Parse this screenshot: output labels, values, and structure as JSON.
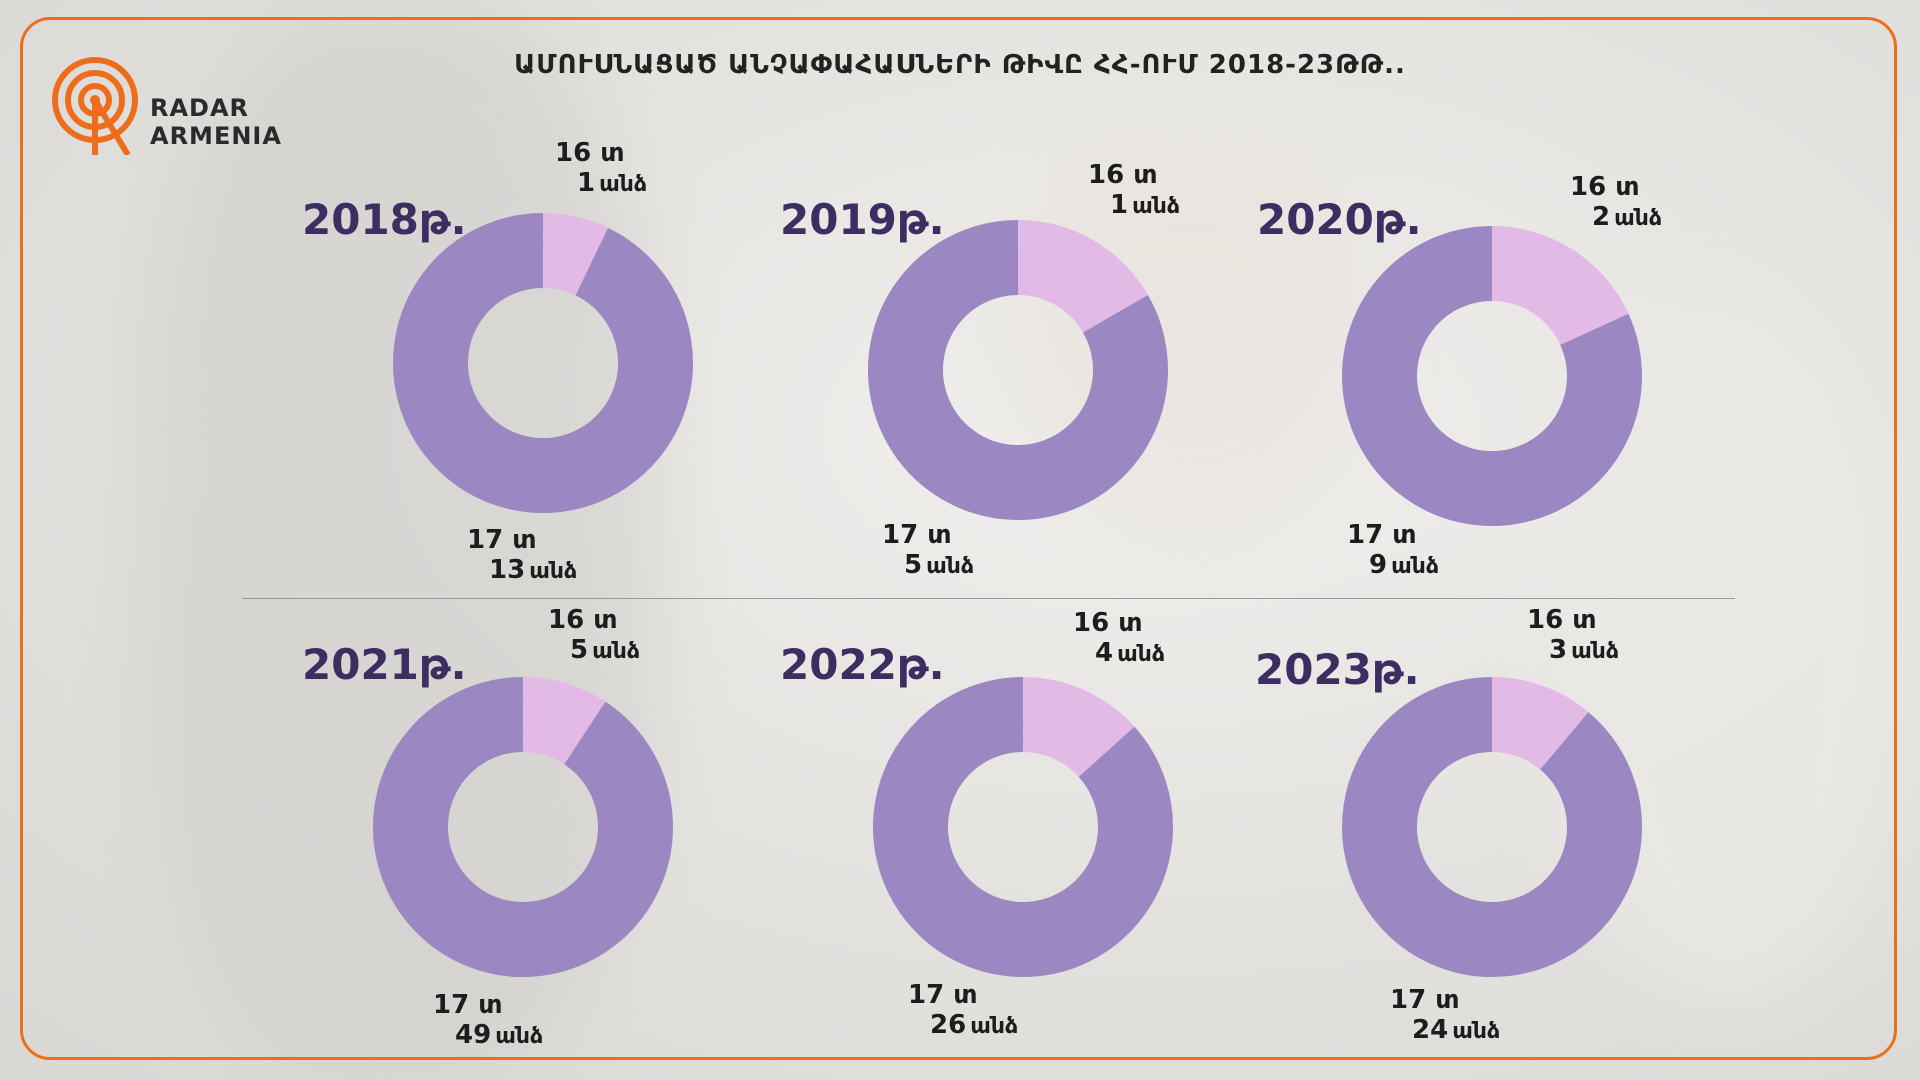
{
  "title": "ԱՄՈՒՍՆԱՑԱԾ ԱՆՉԱՓԱՀԱՍՆԵՐԻ ԹԻՎԸ ՀՀ-ՈՒՄ 2018-23ԹԹ..",
  "logo": {
    "line1": "RADAR",
    "line2": "ARMENIA"
  },
  "colors": {
    "age16": "#e3b9e6",
    "age17": "#9b88c3",
    "frame": "#ee6d1c",
    "year": "#3c2e61"
  },
  "chart_data": [
    {
      "type": "pie",
      "title": "2018թ.",
      "categories": [
        "16 տ",
        "17 տ"
      ],
      "values": [
        1,
        13
      ],
      "value_labels": [
        "1",
        "13"
      ],
      "unit": "անձ"
    },
    {
      "type": "pie",
      "title": "2019թ.",
      "categories": [
        "16 տ",
        "17 տ"
      ],
      "values": [
        1,
        5
      ],
      "value_labels": [
        "1",
        "5"
      ],
      "unit": "անձ"
    },
    {
      "type": "pie",
      "title": "2020թ.",
      "categories": [
        "16 տ",
        "17 տ"
      ],
      "values": [
        2,
        9
      ],
      "value_labels": [
        "2",
        "9"
      ],
      "unit": "անձ"
    },
    {
      "type": "pie",
      "title": "2021թ.",
      "categories": [
        "16 տ",
        "17 տ"
      ],
      "values": [
        5,
        49
      ],
      "value_labels": [
        "5",
        "49"
      ],
      "unit": "անձ"
    },
    {
      "type": "pie",
      "title": "2022թ.",
      "categories": [
        "16 տ",
        "17 տ"
      ],
      "values": [
        4,
        26
      ],
      "value_labels": [
        "4",
        "26"
      ],
      "unit": "անձ"
    },
    {
      "type": "pie",
      "title": "2023թ.",
      "categories": [
        "16 տ",
        "17 տ"
      ],
      "values": [
        3,
        24
      ],
      "value_labels": [
        "3",
        "24"
      ],
      "unit": "անձ"
    }
  ]
}
